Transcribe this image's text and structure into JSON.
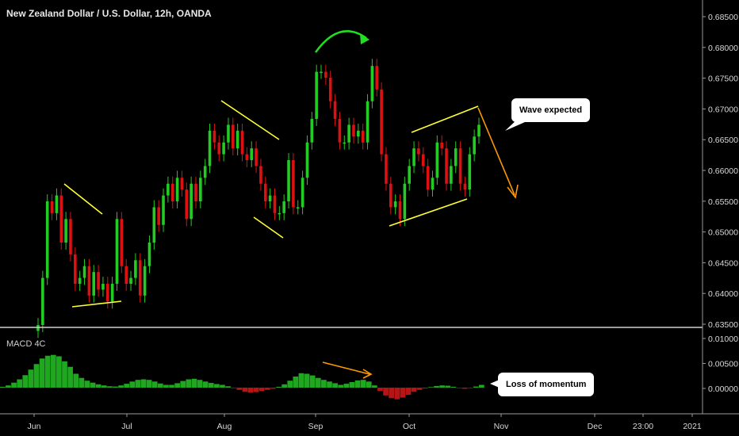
{
  "chart_title": "New Zealand Dollar / U.S. Dollar, 12h, OANDA",
  "indicator_label": "MACD 4C",
  "callouts": {
    "wave": "Wave expected",
    "momentum": "Loss of momentum"
  },
  "price_axis": [
    "0.68500",
    "0.68000",
    "0.67500",
    "0.67000",
    "0.66500",
    "0.66000",
    "0.65500",
    "0.65000",
    "0.64500",
    "0.64000",
    "0.63500"
  ],
  "macd_axis": [
    "0.01000",
    "0.00500",
    "0.00000"
  ],
  "time_axis": [
    "Jun",
    "Jul",
    "Aug",
    "Sep",
    "Oct",
    "Nov",
    "Dec",
    "23:00",
    "2021"
  ],
  "colors": {
    "up": "#22cc22",
    "down": "#dd1111",
    "pattern": "#ffff33",
    "arrow": "#ff9900",
    "curve": "#22dd22",
    "hist_pos": "#1fa81f",
    "hist_neg": "#b81414"
  },
  "chart_data": {
    "type": "candlestick",
    "ylim": [
      0.635,
      0.6875
    ],
    "series_close": [
      0.635,
      0.643,
      0.656,
      0.654,
      0.657,
      0.649,
      0.653,
      0.647,
      0.642,
      0.643,
      0.645,
      0.64,
      0.644,
      0.641,
      0.642,
      0.639,
      0.642,
      0.653,
      0.645,
      0.642,
      0.643,
      0.646,
      0.64,
      0.645,
      0.649,
      0.655,
      0.652,
      0.657,
      0.659,
      0.656,
      0.66,
      0.658,
      0.653,
      0.659,
      0.656,
      0.66,
      0.662,
      0.668,
      0.666,
      0.664,
      0.666,
      0.669,
      0.665,
      0.668,
      0.664,
      0.663,
      0.665,
      0.662,
      0.659,
      0.656,
      0.657,
      0.654,
      0.654,
      0.656,
      0.663,
      0.655,
      0.655,
      0.66,
      0.666,
      0.67,
      0.678,
      0.678,
      0.677,
      0.673,
      0.67,
      0.666,
      0.666,
      0.669,
      0.667,
      0.668,
      0.666,
      0.673,
      0.679,
      0.675,
      0.664,
      0.659,
      0.655,
      0.656,
      0.653,
      0.659,
      0.662,
      0.665,
      0.664,
      0.662,
      0.658,
      0.66,
      0.666,
      0.665,
      0.659,
      0.662,
      0.665,
      0.659,
      0.658,
      0.664,
      0.667,
      0.669
    ],
    "macd_histogram": [
      0.0003,
      0.0008,
      0.0018,
      0.003,
      0.0045,
      0.0065,
      0.0085,
      0.0105,
      0.0115,
      0.0118,
      0.0113,
      0.0095,
      0.0075,
      0.005,
      0.0035,
      0.0025,
      0.0018,
      0.0012,
      0.0008,
      0.0005,
      0.0004,
      0.0008,
      0.0014,
      0.0022,
      0.0028,
      0.003,
      0.0028,
      0.0022,
      0.0015,
      0.001,
      0.001,
      0.0016,
      0.0024,
      0.003,
      0.0032,
      0.0028,
      0.0022,
      0.0017,
      0.0013,
      0.001,
      0.0005,
      -0.0002,
      -0.0008,
      -0.0015,
      -0.0018,
      -0.0016,
      -0.0012,
      -0.0008,
      -0.0004,
      0.0003,
      0.0012,
      0.0025,
      0.004,
      0.0052,
      0.005,
      0.0044,
      0.0035,
      0.0028,
      0.0022,
      0.0016,
      0.001,
      0.0014,
      0.002,
      0.0026,
      0.0028,
      0.0022,
      0.0008,
      -0.0012,
      -0.0028,
      -0.0038,
      -0.0042,
      -0.0036,
      -0.0026,
      -0.0015,
      -0.0008,
      -0.0003,
      0.0002,
      0.0006,
      0.0008,
      0.0007,
      0.0003,
      -0.0002,
      -0.0004,
      -0.0002,
      0.0004,
      0.001
    ],
    "xlabel": "",
    "ylabel": ""
  }
}
